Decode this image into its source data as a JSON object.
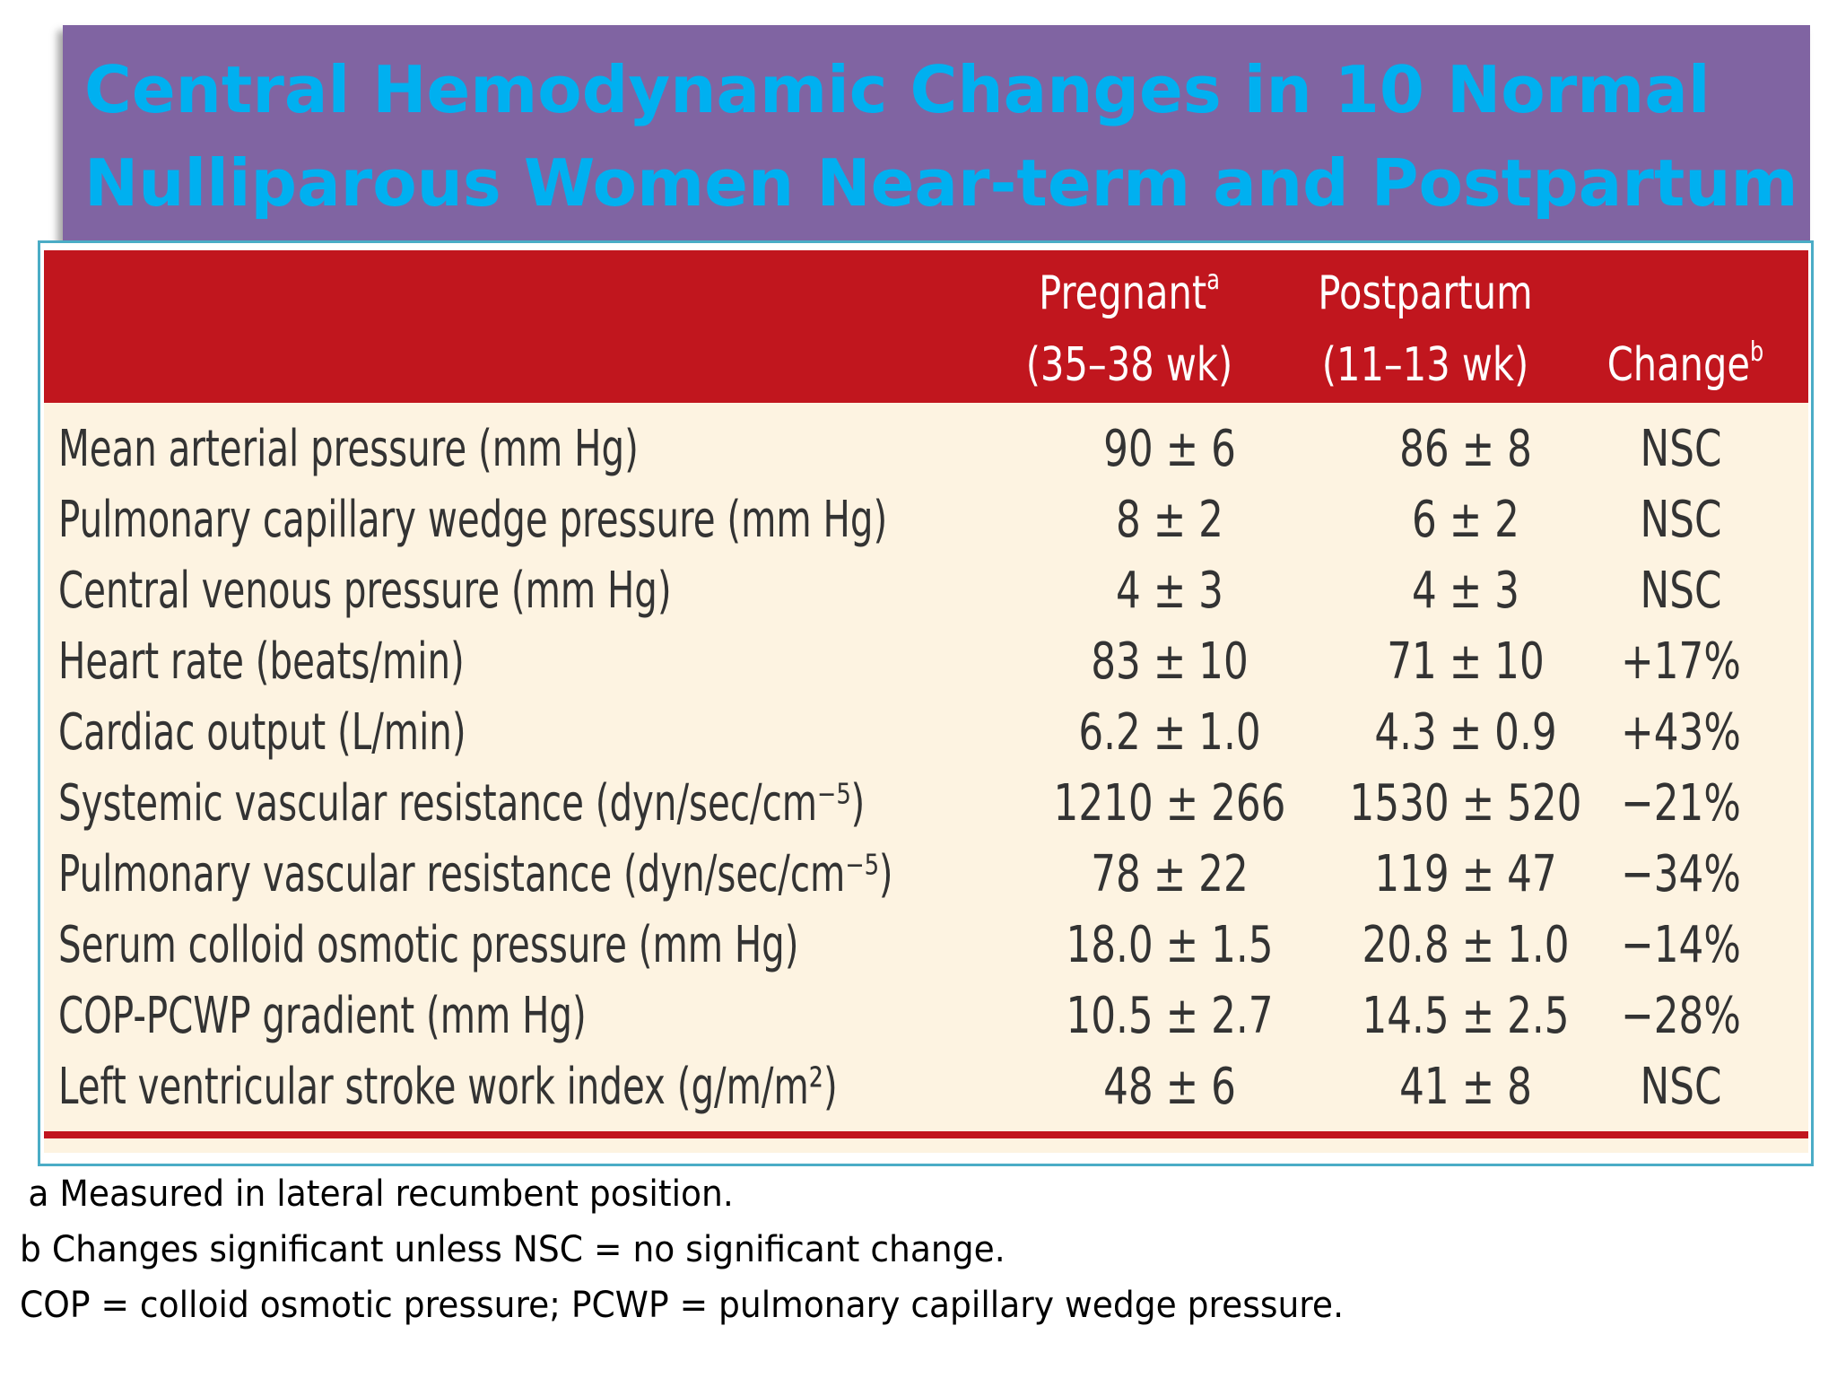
{
  "title": {
    "line1": "Central Hemodynamic Changes in 10 Normal",
    "line2": "Nulliparous Women Near-term and Postpartum"
  },
  "table": {
    "headers": {
      "pregnant": {
        "line1": "Pregnant",
        "sup": "a",
        "line2": "(35–38 wk)"
      },
      "postpartum": {
        "line1": "Postpartum",
        "line2": "(11–13 wk)"
      },
      "change": {
        "label": "Change",
        "sup": "b"
      }
    },
    "rows": [
      {
        "label": "Mean arterial pressure (mm Hg)",
        "pregnant": "90 ± 6",
        "postpartum": "86 ± 8",
        "change": "NSC"
      },
      {
        "label": "Pulmonary capillary wedge pressure (mm Hg)",
        "pregnant": "8 ± 2",
        "postpartum": "6 ± 2",
        "change": "NSC"
      },
      {
        "label": "Central venous pressure (mm Hg)",
        "pregnant": "4 ± 3",
        "postpartum": "4 ± 3",
        "change": "NSC"
      },
      {
        "label": "Heart rate (beats/min)",
        "pregnant": "83 ± 10",
        "postpartum": "71 ± 10",
        "change": "+17%"
      },
      {
        "label": "Cardiac output (L/min)",
        "pregnant": "6.2 ± 1.0",
        "postpartum": "4.3 ± 0.9",
        "change": "+43%"
      },
      {
        "label": "Systemic vascular resistance (dyn/sec/cm⁻⁵)",
        "pregnant": "1210 ± 266",
        "postpartum": "1530 ± 520",
        "change": "−21%"
      },
      {
        "label": "Pulmonary vascular resistance (dyn/sec/cm⁻⁵)",
        "pregnant": "78 ± 22",
        "postpartum": "119 ± 47",
        "change": "−34%"
      },
      {
        "label": "Serum colloid osmotic pressure (mm Hg)",
        "pregnant": "18.0 ± 1.5",
        "postpartum": "20.8 ± 1.0",
        "change": "−14%"
      },
      {
        "label": "COP-PCWP gradient (mm Hg)",
        "pregnant": "10.5 ± 2.7",
        "postpartum": "14.5 ± 2.5",
        "change": "−28%"
      },
      {
        "label": "Left ventricular stroke work index (g/m/m²)",
        "pregnant": "48 ± 6",
        "postpartum": "41 ± 8",
        "change": "NSC"
      }
    ]
  },
  "footnotes": {
    "a": "a Measured in lateral recumbent position.",
    "b": "b Changes significant unless NSC = no significant change.",
    "abbrev": "COP = colloid osmotic pressure; PCWP = pulmonary capillary wedge pressure."
  },
  "colors": {
    "banner": "#8064a2",
    "title_text": "#00b0f0",
    "header_red": "#c1161e",
    "table_bg": "#fdf3e1",
    "frame_border": "#4bacc6"
  }
}
